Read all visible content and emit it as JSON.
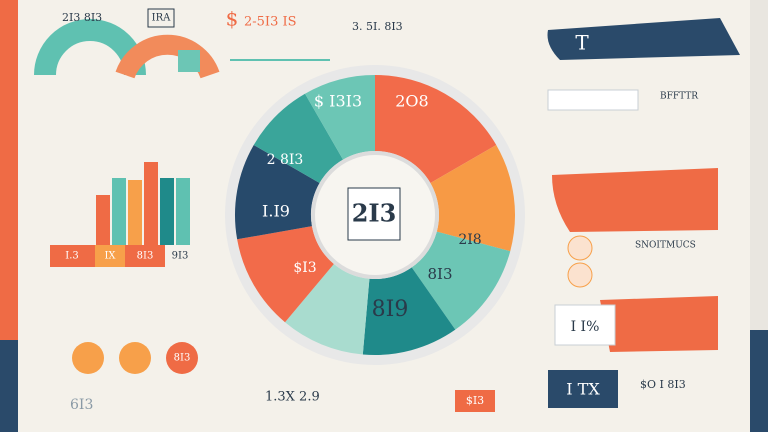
{
  "header": {
    "left_title": "2I3 8I3",
    "tag": "IRA",
    "currency": "$",
    "price": "2-5I3 IS",
    "top_center": "3. 5I. 8I3",
    "top_right": "T"
  },
  "wheel": {
    "center": "2I3",
    "segments": [
      "$ I3I3",
      "2O8",
      "2 8I3",
      "I.I9",
      "2I8",
      "$I3",
      "8I3",
      "8I9"
    ]
  },
  "bars": {
    "labels": [
      "I.3",
      "IX",
      "8I3",
      "9I3"
    ]
  },
  "side": {
    "right_heading": "BFFTTR",
    "right_list": "SNOITMUCS",
    "card_value": "I I%",
    "box_value": "I TX",
    "bottom_right": "$O I 8I3"
  },
  "footer": {
    "left_value": "6I3",
    "left_circle": "8I3",
    "center_value": "1.3X 2.9",
    "center_price": "$I3"
  }
}
